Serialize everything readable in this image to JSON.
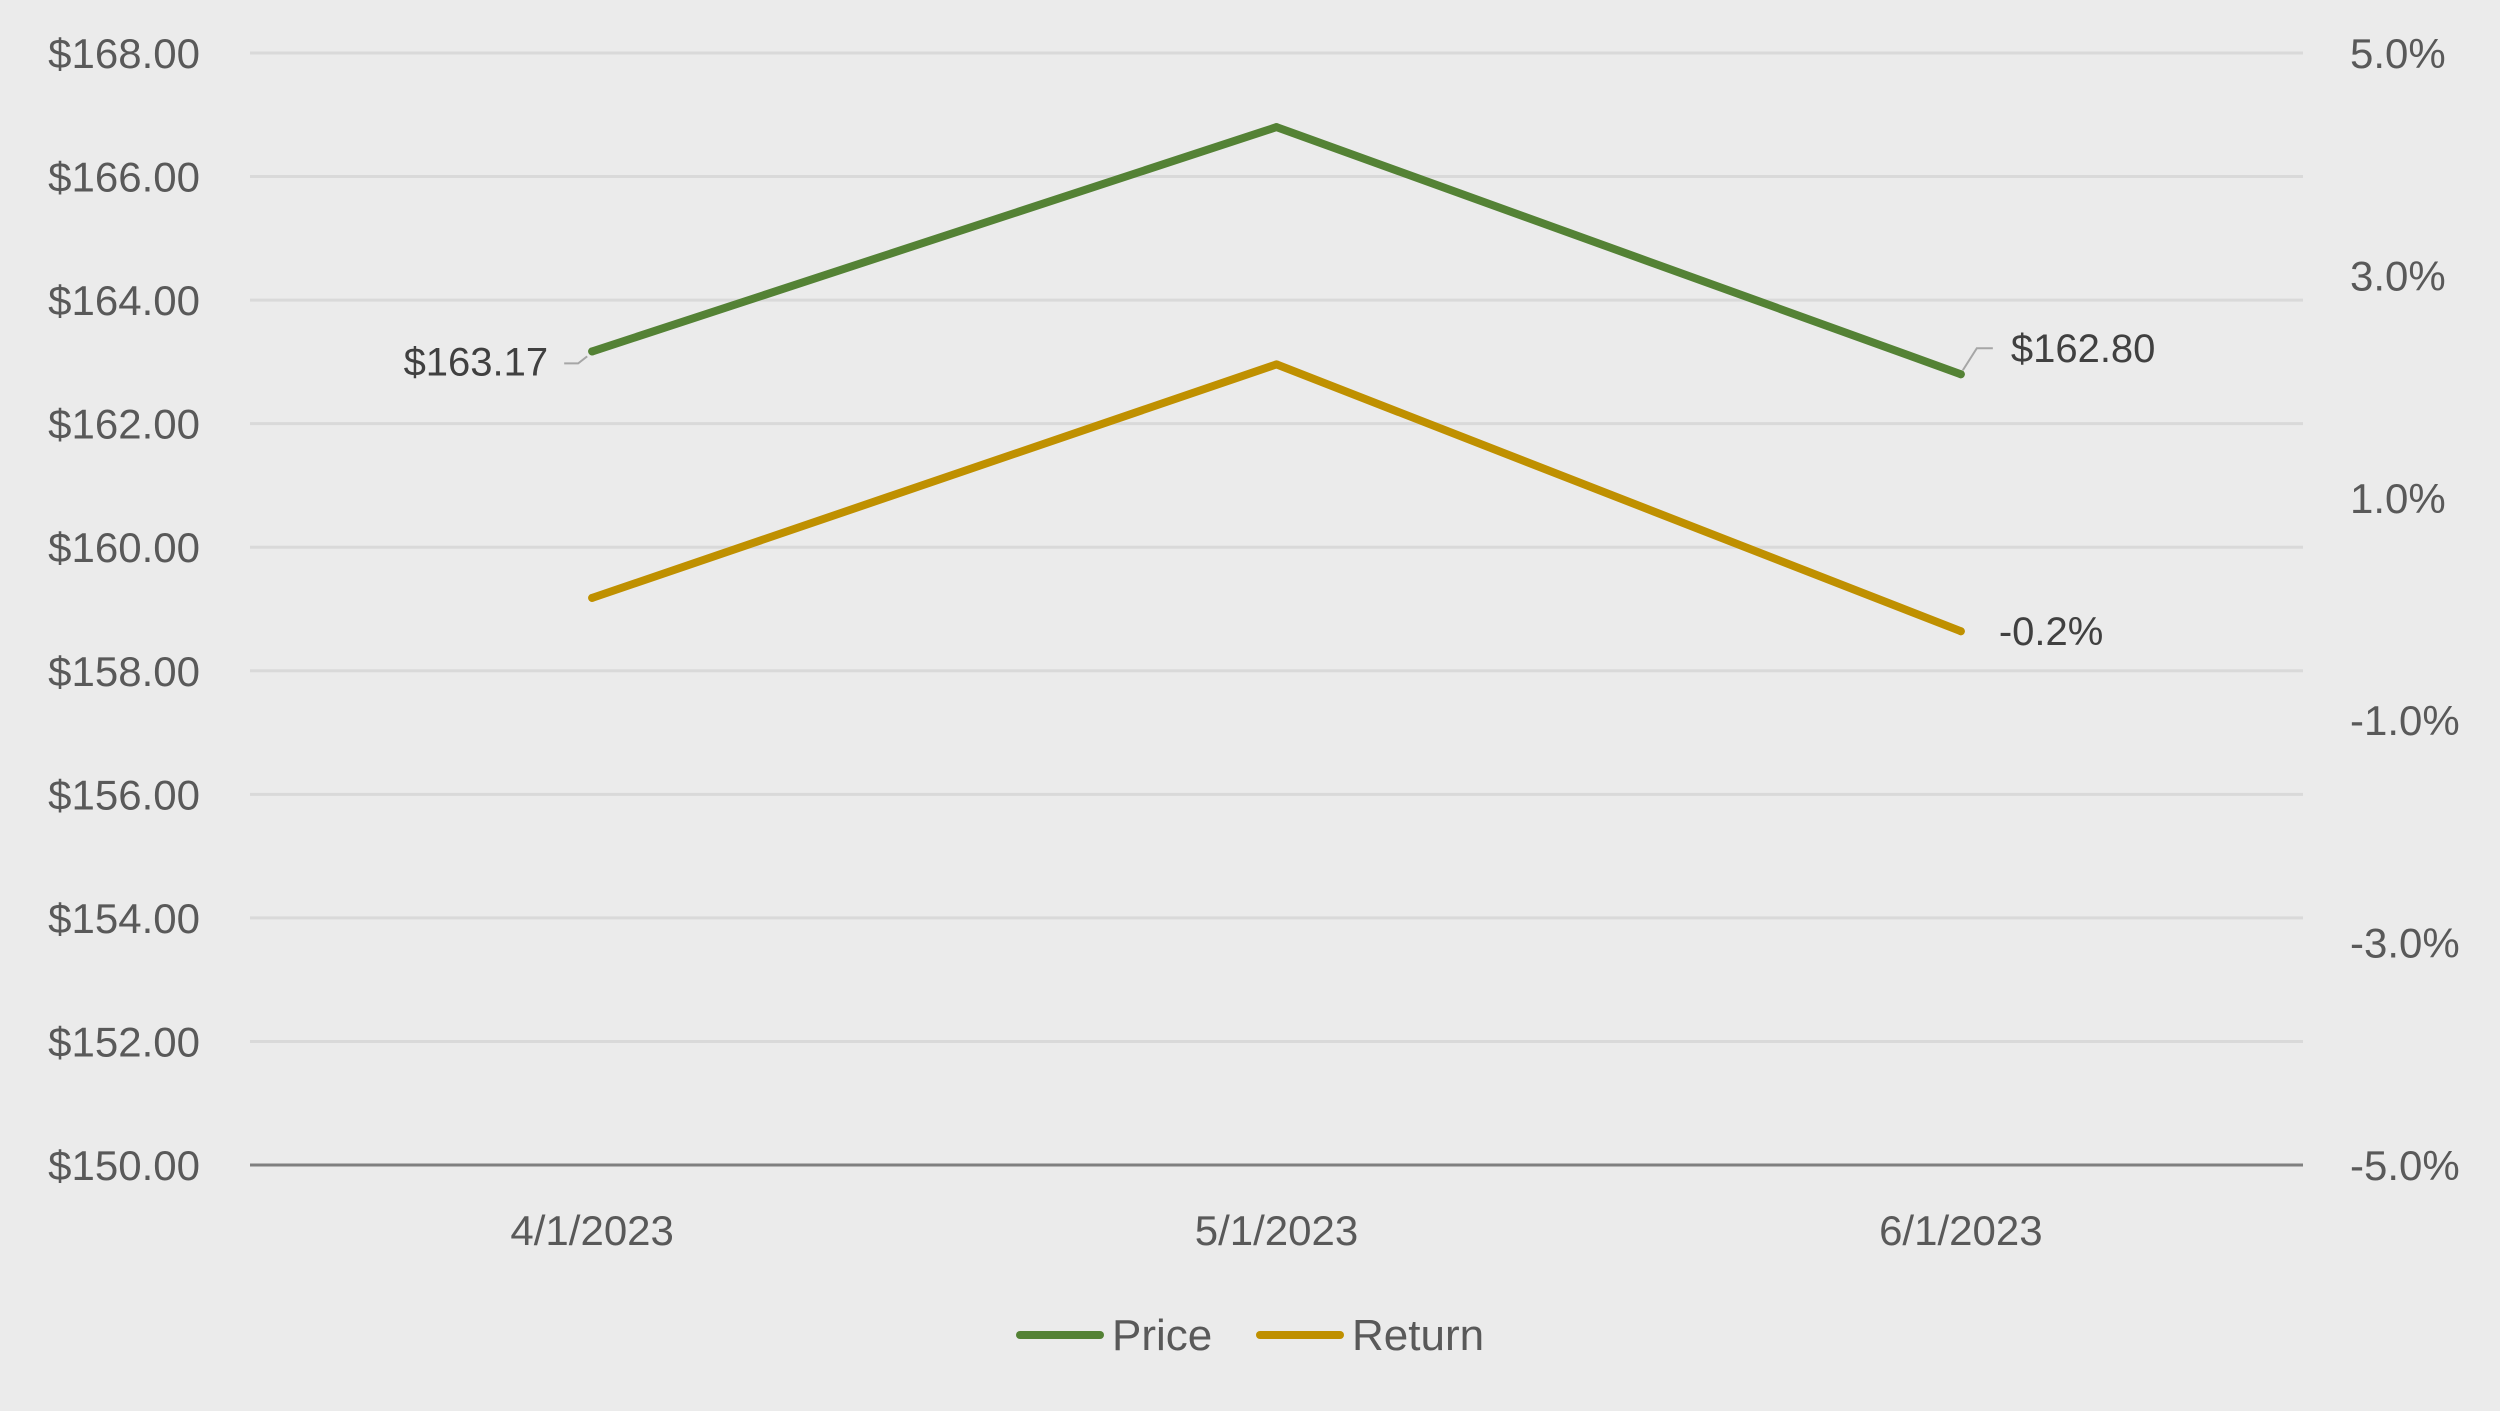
{
  "chart_data": {
    "type": "line",
    "title": "",
    "categories": [
      "4/1/2023",
      "5/1/2023",
      "6/1/2023"
    ],
    "series": [
      {
        "name": "Price",
        "axis": "left",
        "color": "#548235",
        "values": [
          163.17,
          166.8,
          162.8
        ],
        "data_labels": [
          "$163.17",
          "",
          "$162.80"
        ]
      },
      {
        "name": "Return",
        "axis": "right",
        "color": "#bf9000",
        "values": [
          0.001,
          0.022,
          -0.002
        ],
        "data_labels": [
          "",
          "",
          "-0.2%"
        ]
      }
    ],
    "y_left": {
      "range": [
        150,
        168
      ],
      "ticks": [
        150,
        152,
        154,
        156,
        158,
        160,
        162,
        164,
        166,
        168
      ],
      "tick_labels": [
        "$150.00",
        "$152.00",
        "$154.00",
        "$156.00",
        "$158.00",
        "$160.00",
        "$162.00",
        "$164.00",
        "$166.00",
        "$168.00"
      ]
    },
    "y_right": {
      "range": [
        -0.05,
        0.05
      ],
      "ticks": [
        -0.05,
        -0.03,
        -0.01,
        0.01,
        0.03,
        0.05
      ],
      "tick_labels": [
        "-5.0%",
        "-3.0%",
        "-1.0%",
        "1.0%",
        "3.0%",
        "5.0%"
      ]
    },
    "grid": true,
    "legend_position": "bottom",
    "colors": {
      "background": "#ebebeb",
      "gridline": "#d9d9d9",
      "axis_line": "#7f7f7f",
      "tick_text": "#595959",
      "data_label_text": "#404040",
      "leader_line": "#a6a6a6"
    }
  }
}
